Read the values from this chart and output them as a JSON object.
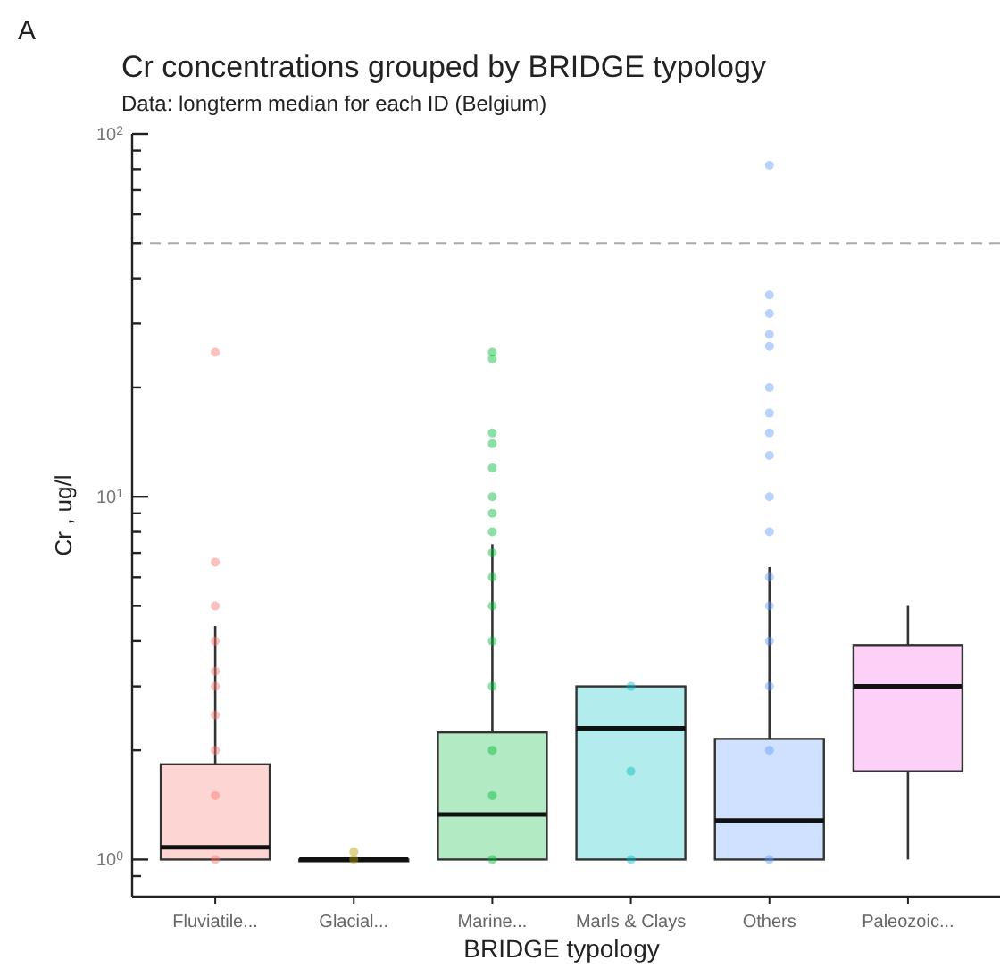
{
  "chart_data": {
    "type": "box",
    "title": "Cr concentrations grouped by BRIDGE typology",
    "subtitle": "Data: longterm median for each ID (Belgium)",
    "xlabel": "BRIDGE typology",
    "ylabel": "Cr , ug/l",
    "annotations": [
      "A"
    ],
    "categories": [
      "Fluviatile...",
      "Glacial...",
      "Marine...",
      "Marls & Clays",
      "Others",
      "Paleozoic..."
    ],
    "colors": [
      "#f8766d",
      "#b79f00",
      "#00ba38",
      "#00bfc4",
      "#619cff",
      "#f564e3"
    ],
    "boxes": [
      {
        "low": 1,
        "q1": 1,
        "median": 1.08,
        "q3": 1.83,
        "high": 4.4
      },
      {
        "low": 1,
        "q1": 1,
        "median": 1,
        "q3": 1,
        "high": 1
      },
      {
        "low": 1,
        "q1": 1,
        "median": 1.33,
        "q3": 2.24,
        "high": 7.4
      },
      {
        "low": 1,
        "q1": 1,
        "median": 2.3,
        "q3": 3,
        "high": 3
      },
      {
        "low": 1,
        "q1": 1,
        "median": 1.28,
        "q3": 2.15,
        "high": 6.4
      },
      {
        "low": 1,
        "q1": 1.75,
        "median": 3,
        "q3": 3.9,
        "high": 5
      }
    ],
    "series": [
      {
        "type": "scatter",
        "color": "#f8766d",
        "x": [
          "Fluviatile...",
          "Fluviatile...",
          "Fluviatile...",
          "Fluviatile...",
          "Fluviatile...",
          "Fluviatile...",
          "Fluviatile...",
          "Fluviatile...",
          "Fluviatile...",
          "Fluviatile..."
        ],
        "values": [
          25,
          6.6,
          5,
          4,
          3.3,
          3,
          2.5,
          2,
          1.5,
          1
        ]
      },
      {
        "type": "scatter",
        "color": "#b79f00",
        "x": [
          "Glacial...",
          "Glacial..."
        ],
        "values": [
          1.05,
          1
        ]
      },
      {
        "type": "scatter",
        "color": "#00ba38",
        "x": [
          "Marine...",
          "Marine...",
          "Marine...",
          "Marine...",
          "Marine...",
          "Marine...",
          "Marine...",
          "Marine...",
          "Marine...",
          "Marine...",
          "Marine...",
          "Marine...",
          "Marine...",
          "Marine...",
          "Marine...",
          "Marine..."
        ],
        "values": [
          25,
          24,
          15,
          14,
          12,
          10,
          9,
          8,
          7,
          6,
          5,
          4,
          3,
          2,
          1.5,
          1
        ]
      },
      {
        "type": "scatter",
        "color": "#00bfc4",
        "x": [
          "Marls & Clays",
          "Marls & Clays",
          "Marls & Clays"
        ],
        "values": [
          3,
          1.75,
          1
        ]
      },
      {
        "type": "scatter",
        "color": "#619cff",
        "x": [
          "Others",
          "Others",
          "Others",
          "Others",
          "Others",
          "Others",
          "Others",
          "Others",
          "Others",
          "Others",
          "Others",
          "Others",
          "Others",
          "Others",
          "Others",
          "Others",
          "Others"
        ],
        "values": [
          82,
          36,
          32,
          28,
          26,
          20,
          17,
          15,
          13,
          10,
          8,
          6,
          5,
          4,
          3,
          2,
          1
        ]
      }
    ],
    "ref_lines": [
      {
        "axis": "y",
        "value": 50,
        "color": "#aaaaaa",
        "line_style": "dashed"
      }
    ],
    "log": true,
    "ylim": [
      0.79,
      100
    ],
    "yticks": [
      {
        "value": 0.9,
        "label": null
      },
      {
        "value": 1,
        "label": "10$^{0}$"
      },
      {
        "value": 2,
        "label": null
      },
      {
        "value": 3,
        "label": null
      },
      {
        "value": 4,
        "label": null
      },
      {
        "value": 5,
        "label": null
      },
      {
        "value": 6,
        "label": null
      },
      {
        "value": 7,
        "label": null
      },
      {
        "value": 8,
        "label": null
      },
      {
        "value": 9,
        "label": null
      },
      {
        "value": 10,
        "label": "10$^{1}$"
      },
      {
        "value": 20,
        "label": null
      },
      {
        "value": 30,
        "label": null
      },
      {
        "value": 40,
        "label": null
      },
      {
        "value": 50,
        "label": null
      },
      {
        "value": 60,
        "label": null
      },
      {
        "value": 70,
        "label": null
      },
      {
        "value": 80,
        "label": null
      },
      {
        "value": 90,
        "label": null
      },
      {
        "value": 100,
        "label": "10$^{2}$"
      }
    ]
  }
}
